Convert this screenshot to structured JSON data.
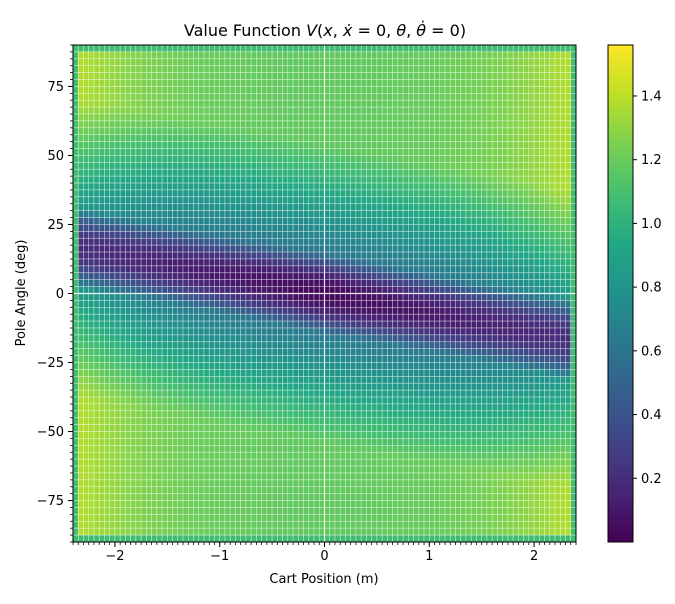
{
  "chart_data": {
    "type": "heatmap",
    "title_parts": [
      "Value Function ",
      "V",
      "(",
      "x",
      ", ",
      "ẋ",
      " = 0, ",
      "θ",
      ", ",
      "θ̇",
      " = 0)"
    ],
    "xlabel": "Cart Position (m)",
    "ylabel": "Pole Angle (deg)",
    "xlim": [
      -2.4,
      2.4
    ],
    "ylim": [
      -90,
      90
    ],
    "xticks": [
      {
        "value": -2,
        "label": "−2"
      },
      {
        "value": -1,
        "label": "−1"
      },
      {
        "value": 0,
        "label": "0"
      },
      {
        "value": 1,
        "label": "1"
      },
      {
        "value": 2,
        "label": "2"
      }
    ],
    "yticks": [
      {
        "value": 75,
        "label": "75"
      },
      {
        "value": 50,
        "label": "50"
      },
      {
        "value": 25,
        "label": "25"
      },
      {
        "value": 0,
        "label": "0"
      },
      {
        "value": -25,
        "label": "−25"
      },
      {
        "value": -50,
        "label": "−50"
      },
      {
        "value": -75,
        "label": "−75"
      }
    ],
    "colorbar": {
      "range": [
        0.0,
        1.56
      ],
      "ticks": [
        {
          "value": 0.2,
          "label": "0.2"
        },
        {
          "value": 0.4,
          "label": "0.4"
        },
        {
          "value": 0.6,
          "label": "0.6"
        },
        {
          "value": 0.8,
          "label": "0.8"
        },
        {
          "value": 1.0,
          "label": "1.0"
        },
        {
          "value": 1.2,
          "label": "1.2"
        },
        {
          "value": 1.4,
          "label": "1.4"
        }
      ],
      "colormap": "viridis"
    },
    "grid": {
      "x_cells": 96,
      "y_cells": 72
    },
    "reference_lines": {
      "x": 0,
      "y": 0
    }
  }
}
